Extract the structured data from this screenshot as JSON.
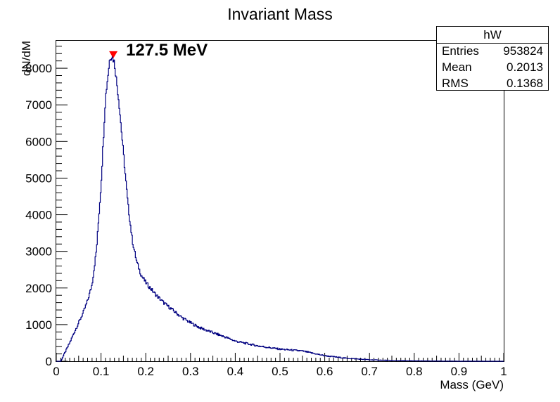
{
  "chart_data": {
    "type": "histogram",
    "title": "Invariant Mass",
    "xlabel": "Mass (GeV)",
    "ylabel": "dN/dM",
    "xlim": [
      0,
      1
    ],
    "ylim": [
      0,
      8750
    ],
    "x_ticks": [
      "0",
      "0.1",
      "0.2",
      "0.3",
      "0.4",
      "0.5",
      "0.6",
      "0.7",
      "0.8",
      "0.9",
      "1"
    ],
    "y_ticks": [
      "0",
      "1000",
      "2000",
      "3000",
      "4000",
      "5000",
      "6000",
      "7000",
      "8000"
    ],
    "series": [
      {
        "color": "#000080",
        "x": [
          0.0,
          0.01,
          0.02,
          0.03,
          0.04,
          0.05,
          0.06,
          0.07,
          0.08,
          0.09,
          0.1,
          0.11,
          0.12,
          0.125,
          0.13,
          0.14,
          0.15,
          0.16,
          0.17,
          0.18,
          0.19,
          0.2,
          0.22,
          0.24,
          0.26,
          0.28,
          0.3,
          0.32,
          0.35,
          0.38,
          0.4,
          0.45,
          0.5,
          0.55,
          0.6,
          0.65,
          0.7,
          0.75,
          0.8,
          0.85,
          0.9,
          0.95,
          1.0
        ],
        "values": [
          0,
          0,
          250,
          500,
          780,
          1050,
          1320,
          1650,
          2100,
          3050,
          4800,
          7200,
          8300,
          8350,
          8150,
          7100,
          5700,
          4300,
          3300,
          2700,
          2350,
          2150,
          1850,
          1600,
          1400,
          1200,
          1050,
          920,
          780,
          650,
          550,
          420,
          330,
          280,
          150,
          80,
          40,
          20,
          10,
          5,
          2,
          1,
          0
        ]
      }
    ],
    "marker": {
      "x": 0.1275,
      "y": 8350,
      "color": "#ff0000",
      "label": "127.5 MeV"
    }
  },
  "stats_box": {
    "title": "hW",
    "rows": [
      {
        "label": "Entries",
        "value": "953824"
      },
      {
        "label": "Mean",
        "value": "0.2013"
      },
      {
        "label": "RMS",
        "value": "0.1368"
      }
    ]
  }
}
